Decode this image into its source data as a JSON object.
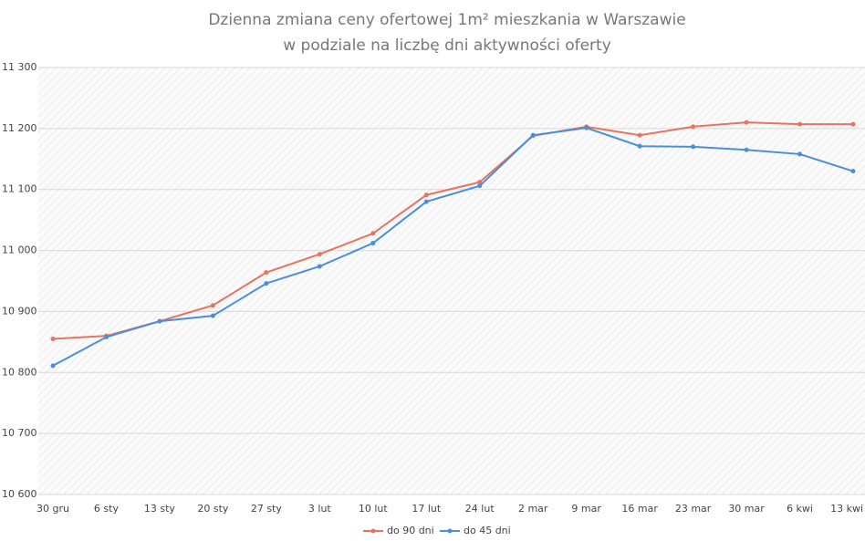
{
  "chart_data": {
    "type": "line",
    "title": [
      "Dzienna zmiana ceny ofertowej 1m² mieszkania w Warszawie",
      "w podziale na liczbę dni aktywności oferty"
    ],
    "categories": [
      "30 gru",
      "6 sty",
      "13 sty",
      "20 sty",
      "27 sty",
      "3 lut",
      "10 lut",
      "17 lut",
      "24 lut",
      "2 mar",
      "9 mar",
      "16 mar",
      "23 mar",
      "30 mar",
      "6 kwi",
      "13 kwi"
    ],
    "series": [
      {
        "name": "do 90 dni",
        "color": "#e8735f",
        "values": [
          10855,
          10860,
          10884,
          10910,
          10964,
          10994,
          11028,
          11091,
          11112,
          11188,
          11203,
          11189,
          11203,
          11210,
          11207,
          11207
        ]
      },
      {
        "name": "do 45 dni",
        "color": "#4a8fdb",
        "values": [
          10811,
          10858,
          10884,
          10893,
          10946,
          10974,
          11012,
          11080,
          11106,
          11189,
          11201,
          11171,
          11170,
          11165,
          11158,
          11130
        ]
      }
    ],
    "ylim": [
      10600,
      11300
    ],
    "yticks": [
      {
        "value": 10600,
        "label": "10 600"
      },
      {
        "value": 10700,
        "label": "10 700"
      },
      {
        "value": 10800,
        "label": "10 800"
      },
      {
        "value": 10900,
        "label": "10 900"
      },
      {
        "value": 11000,
        "label": "11 000"
      },
      {
        "value": 11100,
        "label": "11 100"
      },
      {
        "value": 11200,
        "label": "11 200"
      },
      {
        "value": 11300,
        "label": "11 300"
      }
    ],
    "grid": true,
    "legend": "bottom"
  }
}
